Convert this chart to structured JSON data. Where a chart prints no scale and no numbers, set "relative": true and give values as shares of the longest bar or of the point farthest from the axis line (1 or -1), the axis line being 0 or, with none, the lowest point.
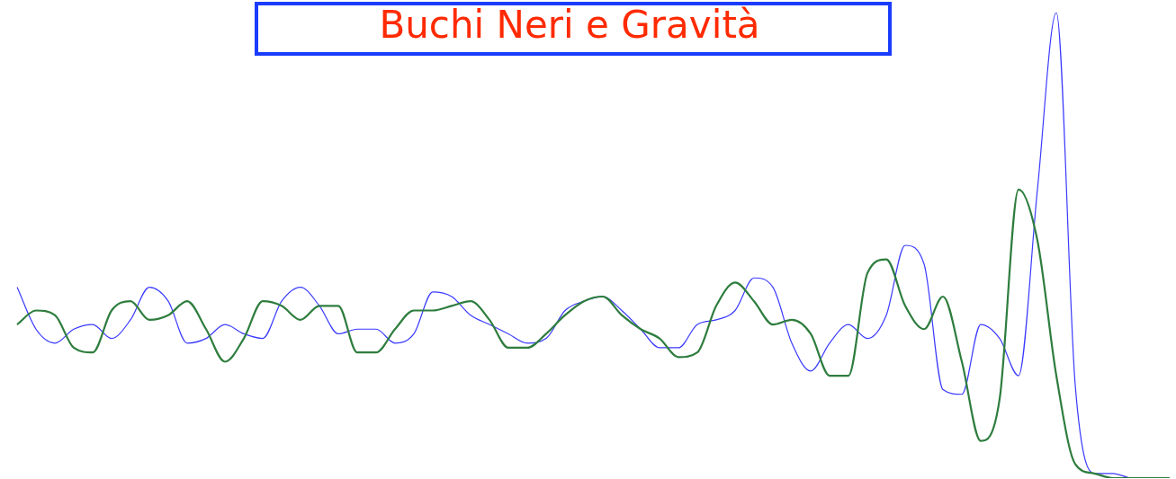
{
  "chart_data": {
    "type": "line",
    "title": "Buchi Neri e Gravità",
    "relative": true,
    "categories": [
      null,
      null,
      null,
      null,
      null,
      null,
      null,
      null,
      null,
      null,
      null,
      null,
      null,
      null,
      null,
      null,
      null,
      null,
      null,
      null,
      null,
      null,
      null,
      null,
      null,
      null,
      null,
      null,
      null,
      null,
      null,
      null,
      null,
      null,
      null,
      null,
      null,
      null,
      null,
      null,
      null,
      null,
      null,
      null,
      null,
      null,
      null,
      null,
      null,
      null,
      null,
      null,
      null,
      null,
      null,
      null,
      null,
      null,
      null,
      null,
      null,
      null
    ],
    "series": [
      {
        "color": "#3a3aff",
        "values": [
          0.41,
          0.32,
          0.29,
          0.32,
          0.33,
          0.3,
          0.34,
          0.41,
          0.38,
          0.29,
          0.3,
          0.33,
          0.31,
          0.3,
          0.38,
          0.41,
          0.37,
          0.31,
          0.32,
          0.32,
          0.29,
          0.31,
          0.4,
          0.39,
          0.35,
          0.33,
          0.31,
          0.29,
          0.3,
          0.36,
          0.38,
          0.39,
          0.36,
          0.32,
          0.28,
          0.28,
          0.33,
          0.34,
          0.36,
          0.43,
          0.41,
          0.29,
          0.23,
          0.29,
          0.33,
          0.3,
          0.35,
          0.5,
          0.46,
          0.19,
          0.18,
          0.33,
          0.3,
          0.22,
          0.62,
          1,
          0.2,
          0.01,
          0.01,
          0,
          0,
          0
        ]
      },
      {
        "color": "#2e7d3e",
        "values": [
          0.33,
          0.36,
          0.35,
          0.28,
          0.27,
          0.36,
          0.38,
          0.34,
          0.35,
          0.38,
          0.32,
          0.25,
          0.3,
          0.38,
          0.37,
          0.34,
          0.37,
          0.37,
          0.27,
          0.27,
          0.32,
          0.36,
          0.36,
          0.37,
          0.38,
          0.34,
          0.28,
          0.28,
          0.31,
          0.35,
          0.38,
          0.39,
          0.35,
          0.32,
          0.3,
          0.26,
          0.27,
          0.37,
          0.42,
          0.38,
          0.33,
          0.34,
          0.31,
          0.22,
          0.22,
          0.44,
          0.47,
          0.37,
          0.32,
          0.39,
          0.25,
          0.08,
          0.17,
          0.62,
          0.51,
          0.22,
          0.03,
          0.01,
          0,
          0,
          0,
          0
        ]
      }
    ]
  }
}
